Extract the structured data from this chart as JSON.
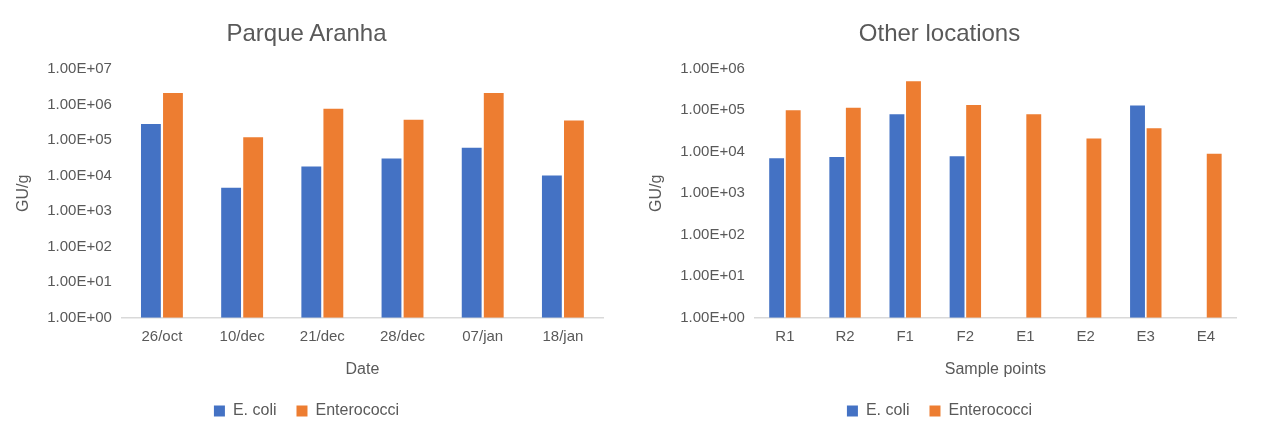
{
  "chart_data": [
    {
      "type": "bar",
      "title": "Parque Aranha",
      "xlabel": "Date",
      "ylabel": "GU/g",
      "log": "y",
      "grid": false,
      "legend": "bottom",
      "categories": [
        "26/oct",
        "10/dec",
        "21/dec",
        "28/dec",
        "07/jan",
        "18/jan"
      ],
      "series": [
        {
          "name": "E. coli",
          "color": "#4472c4",
          "values": [
            280000,
            4500,
            18000,
            30000,
            60000,
            10000
          ]
        },
        {
          "name": "Enterococci",
          "color": "#ed7d31",
          "values": [
            2100000,
            120000,
            750000,
            370000,
            2100000,
            350000
          ]
        }
      ],
      "ylim": [
        1,
        10000000
      ],
      "yticks": [
        {
          "value": 1,
          "label": "1.00E+00"
        },
        {
          "value": 10,
          "label": "1.00E+01"
        },
        {
          "value": 100,
          "label": "1.00E+02"
        },
        {
          "value": 1000,
          "label": "1.00E+03"
        },
        {
          "value": 10000,
          "label": "1.00E+04"
        },
        {
          "value": 100000,
          "label": "1.00E+05"
        },
        {
          "value": 1000000,
          "label": "1.00E+06"
        },
        {
          "value": 10000000,
          "label": "1.00E+07"
        }
      ]
    },
    {
      "type": "bar",
      "title": "Other locations",
      "xlabel": "Sample points",
      "ylabel": "GU/g",
      "log": "y",
      "grid": false,
      "legend": "bottom",
      "categories": [
        "R1",
        "R2",
        "F1",
        "F2",
        "E1",
        "E2",
        "E3",
        "E4"
      ],
      "series": [
        {
          "name": "E. coli",
          "color": "#4472c4",
          "values": [
            7000,
            7500,
            80000,
            7800,
            null,
            null,
            130000,
            null
          ]
        },
        {
          "name": "Enterococci",
          "color": "#ed7d31",
          "values": [
            100000,
            115000,
            500000,
            135000,
            80000,
            21000,
            37000,
            9000
          ]
        }
      ],
      "ylim": [
        1,
        1000000
      ],
      "yticks": [
        {
          "value": 1,
          "label": "1.00E+00"
        },
        {
          "value": 10,
          "label": "1.00E+01"
        },
        {
          "value": 100,
          "label": "1.00E+02"
        },
        {
          "value": 1000,
          "label": "1.00E+03"
        },
        {
          "value": 10000,
          "label": "1.00E+04"
        },
        {
          "value": 100000,
          "label": "1.00E+05"
        },
        {
          "value": 1000000,
          "label": "1.00E+06"
        }
      ]
    }
  ]
}
